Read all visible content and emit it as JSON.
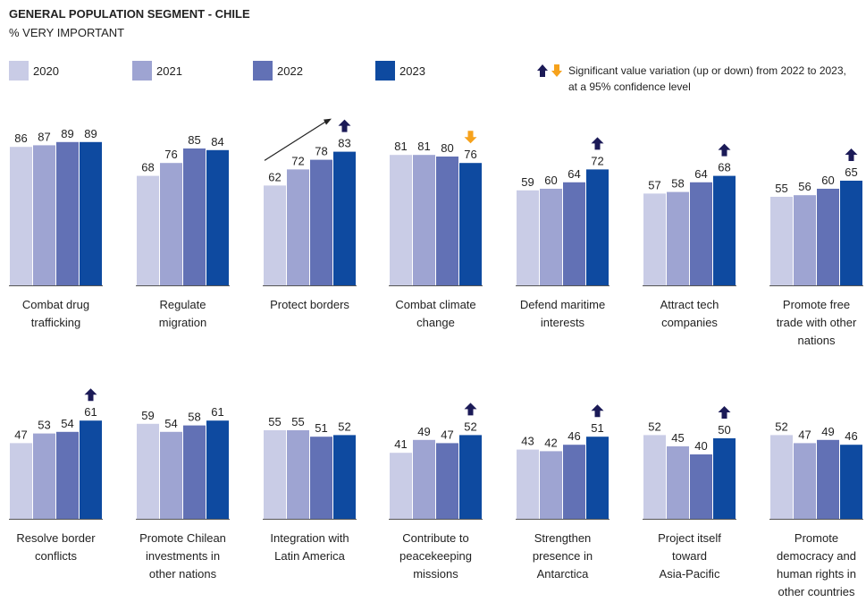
{
  "header": {
    "title": "GENERAL POPULATION SEGMENT - CHILE",
    "subtitle": "% VERY IMPORTANT"
  },
  "legend": {
    "series": [
      {
        "name": "2020",
        "color": "#c9cce6"
      },
      {
        "name": "2021",
        "color": "#9ea4d2"
      },
      {
        "name": "2022",
        "color": "#6271b5"
      },
      {
        "name": "2023",
        "color": "#0e4aa0"
      }
    ],
    "significance_note_line1": "Significant value variation (up or down) from 2022 to 2023,",
    "significance_note_line2": "at a 95% confidence level",
    "up_arrow_color": "#1b1a57",
    "down_arrow_color": "#f6a21c"
  },
  "chart_data": {
    "type": "bar",
    "title": "GENERAL POPULATION SEGMENT - CHILE",
    "subtitle": "% VERY IMPORTANT",
    "series_names": [
      "2020",
      "2021",
      "2022",
      "2023"
    ],
    "ylim": [
      0,
      100
    ],
    "grid": false,
    "legend_position": "top",
    "panels": [
      {
        "category": "Combat drug trafficking",
        "label_lines": [
          "Combat drug",
          "trafficking"
        ],
        "values": [
          86,
          87,
          89,
          89
        ],
        "significance": "none"
      },
      {
        "category": "Regulate migration",
        "label_lines": [
          "Regulate",
          "migration"
        ],
        "values": [
          68,
          76,
          85,
          84
        ],
        "significance": "none"
      },
      {
        "category": "Protect borders",
        "label_lines": [
          "Protect borders"
        ],
        "values": [
          62,
          72,
          78,
          83
        ],
        "significance": "up",
        "trend_arrow": true
      },
      {
        "category": "Combat climate change",
        "label_lines": [
          "Combat climate",
          "change"
        ],
        "values": [
          81,
          81,
          80,
          76
        ],
        "significance": "down"
      },
      {
        "category": "Defend maritime interests",
        "label_lines": [
          "Defend maritime",
          "interests"
        ],
        "values": [
          59,
          60,
          64,
          72
        ],
        "significance": "up"
      },
      {
        "category": "Attract tech companies",
        "label_lines": [
          "Attract tech",
          "companies"
        ],
        "values": [
          57,
          58,
          64,
          68
        ],
        "significance": "up"
      },
      {
        "category": "Promote free trade with other nations",
        "label_lines": [
          "Promote free",
          "trade with other",
          "nations"
        ],
        "values": [
          55,
          56,
          60,
          65
        ],
        "significance": "up"
      },
      {
        "category": "Resolve border conflicts",
        "label_lines": [
          "Resolve border",
          "conflicts"
        ],
        "values": [
          47,
          53,
          54,
          61
        ],
        "significance": "up"
      },
      {
        "category": "Promote Chilean investments in other nations",
        "label_lines": [
          "Promote Chilean",
          "investments in",
          "other nations"
        ],
        "values": [
          59,
          54,
          58,
          61
        ],
        "significance": "none"
      },
      {
        "category": "Integration with Latin America",
        "label_lines": [
          "Integration with",
          "Latin America"
        ],
        "values": [
          55,
          55,
          51,
          52
        ],
        "significance": "none"
      },
      {
        "category": "Contribute to peacekeeping missions",
        "label_lines": [
          "Contribute to",
          "peacekeeping",
          "missions"
        ],
        "values": [
          41,
          49,
          47,
          52
        ],
        "significance": "up"
      },
      {
        "category": "Strengthen presence in Antarctica",
        "label_lines": [
          "Strengthen",
          "presence in",
          "Antarctica"
        ],
        "values": [
          43,
          42,
          46,
          51
        ],
        "significance": "up"
      },
      {
        "category": "Project itself toward Asia-Pacific",
        "label_lines": [
          "Project itself",
          "toward",
          "Asia-Pacific"
        ],
        "values": [
          52,
          45,
          40,
          50
        ],
        "significance": "up"
      },
      {
        "category": "Promote democracy and human rights in other countries",
        "label_lines": [
          "Promote",
          "democracy and",
          "human rights in",
          "other countries"
        ],
        "values": [
          52,
          47,
          49,
          46
        ],
        "significance": "none"
      }
    ]
  }
}
